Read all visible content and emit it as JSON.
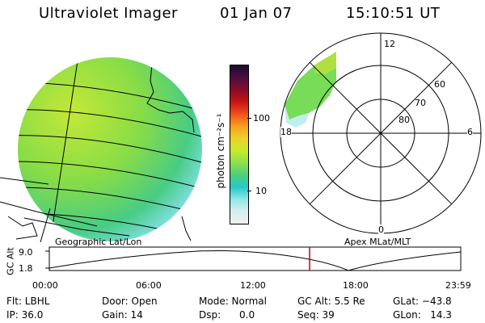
{
  "header": {
    "instrument": "Ultraviolet Imager",
    "date": "01 Jan 07",
    "time": "15:10:51 UT"
  },
  "colorbar": {
    "unit_label": "photon cm⁻²s⁻¹",
    "tick_labels": [
      "100",
      "10"
    ],
    "colors": [
      "#1a0a2e",
      "#4b1040",
      "#8a0a2a",
      "#c81414",
      "#f0501e",
      "#f7a01e",
      "#ecd22a",
      "#c4ec2c",
      "#8ee04a",
      "#4ccf7a",
      "#28c8c8",
      "#8ee8e8",
      "#d8eeee",
      "#f0f0f0"
    ]
  },
  "polar": {
    "mlt_labels": {
      "top": "12",
      "left": "18",
      "right": "6",
      "bottom": "0"
    },
    "lat_labels": [
      "60",
      "70",
      "80"
    ]
  },
  "panels": {
    "left_caption": "Geographic Lat/Lon",
    "right_caption": "Apex MLat/MLT"
  },
  "timeline": {
    "y_label": "GC Alt",
    "y_ticks": [
      "9.0",
      "1.8"
    ],
    "x_ticks": [
      "00:00",
      "06:00",
      "12:00",
      "18:00",
      "23:59"
    ],
    "marker_time": "15:10:51",
    "marker_color": "#d00000"
  },
  "status": {
    "flt": "Flt: LBHL",
    "ip": "IP: 36.0",
    "door": "Door: Open",
    "gain": "Gain: 14",
    "mode": "Mode: Normal",
    "dsp": "Dsp:      0.0",
    "gc_alt": "GC Alt: 5.5 Re",
    "seq": "Seq: 39",
    "glat": "GLat: −43.8",
    "glon": "GLon:   14.3"
  }
}
